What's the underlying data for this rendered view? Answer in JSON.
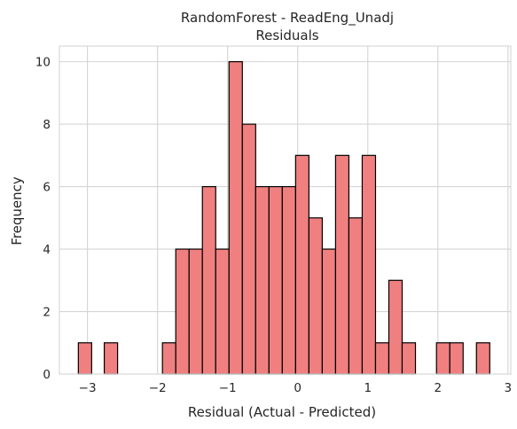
{
  "chart_data": {
    "type": "bar",
    "title_line1": "RandomForest - ReadEng_Unadj",
    "title_line2": "Residuals",
    "xlabel": "Residual (Actual - Predicted)",
    "ylabel": "Frequency",
    "xlim": [
      -3.4,
      3.04
    ],
    "ylim": [
      0,
      10.5
    ],
    "xticks": [
      -3,
      -2,
      -1,
      0,
      1,
      2,
      3
    ],
    "yticks": [
      0,
      2,
      4,
      6,
      8,
      10
    ],
    "grid": true,
    "bar_color": "#f08080",
    "bar_edge_color": "#000000",
    "bins": [
      {
        "x0": -3.13,
        "x1": -2.94,
        "count": 1
      },
      {
        "x0": -2.76,
        "x1": -2.57,
        "count": 1
      },
      {
        "x0": -1.93,
        "x1": -1.74,
        "count": 1
      },
      {
        "x0": -1.74,
        "x1": -1.55,
        "count": 4
      },
      {
        "x0": -1.55,
        "x1": -1.36,
        "count": 4
      },
      {
        "x0": -1.36,
        "x1": -1.17,
        "count": 6
      },
      {
        "x0": -1.17,
        "x1": -0.98,
        "count": 4
      },
      {
        "x0": -0.98,
        "x1": -0.79,
        "count": 10
      },
      {
        "x0": -0.79,
        "x1": -0.6,
        "count": 8
      },
      {
        "x0": -0.6,
        "x1": -0.41,
        "count": 6
      },
      {
        "x0": -0.41,
        "x1": -0.22,
        "count": 6
      },
      {
        "x0": -0.22,
        "x1": -0.03,
        "count": 6
      },
      {
        "x0": -0.03,
        "x1": 0.16,
        "count": 7
      },
      {
        "x0": 0.16,
        "x1": 0.35,
        "count": 5
      },
      {
        "x0": 0.35,
        "x1": 0.54,
        "count": 4
      },
      {
        "x0": 0.54,
        "x1": 0.73,
        "count": 7
      },
      {
        "x0": 0.73,
        "x1": 0.92,
        "count": 5
      },
      {
        "x0": 0.92,
        "x1": 1.11,
        "count": 7
      },
      {
        "x0": 1.11,
        "x1": 1.3,
        "count": 1
      },
      {
        "x0": 1.3,
        "x1": 1.49,
        "count": 3
      },
      {
        "x0": 1.49,
        "x1": 1.68,
        "count": 1
      },
      {
        "x0": 1.98,
        "x1": 2.17,
        "count": 1
      },
      {
        "x0": 2.17,
        "x1": 2.36,
        "count": 1
      },
      {
        "x0": 2.55,
        "x1": 2.74,
        "count": 1
      }
    ]
  }
}
